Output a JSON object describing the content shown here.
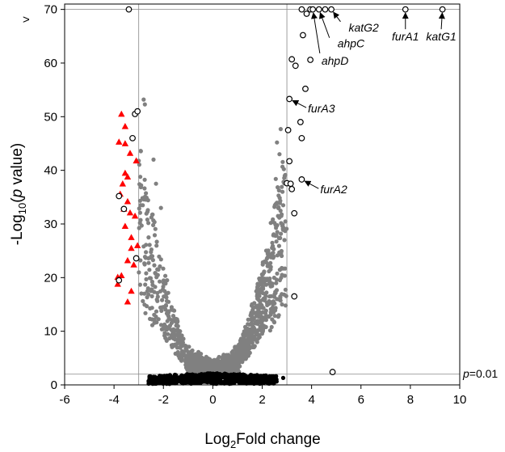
{
  "chart_data": {
    "type": "scatter",
    "xlabel_main": "Log",
    "xlabel_sub": "2",
    "xlabel_tail": "Fold change",
    "ylabel_pre": "-Log",
    "ylabel_sub": "10",
    "ylabel_open": "(",
    "ylabel_italic": "p",
    "ylabel_tail": " value)",
    "xlim": [
      -6,
      10
    ],
    "ylim": [
      0,
      71
    ],
    "x_ticks": [
      "-6",
      "-4",
      "-2",
      "0",
      "2",
      "4",
      "6",
      "8",
      "10"
    ],
    "y_ticks": [
      "0",
      "10",
      "20",
      "30",
      "40",
      "50",
      "60",
      "70"
    ],
    "y_overflow_marker": ">",
    "thresholds": {
      "fold_change": [
        -3,
        3
      ],
      "neg_log_p": 2
    },
    "threshold_label_italic": "p",
    "threshold_label_rest": "=0.01",
    "cap_value": 70,
    "colors": {
      "gray": "#808080",
      "black": "#000000",
      "red": "#ff0000",
      "open": "#ffffff"
    },
    "open_circles": [
      [
        -3.4,
        70
      ],
      [
        3.6,
        70
      ],
      [
        3.8,
        69.2
      ],
      [
        3.95,
        70
      ],
      [
        4.05,
        70
      ],
      [
        4.3,
        70
      ],
      [
        4.55,
        70
      ],
      [
        4.8,
        70
      ],
      [
        7.8,
        70
      ],
      [
        9.3,
        70
      ],
      [
        3.65,
        65.2
      ],
      [
        3.2,
        60.7
      ],
      [
        3.35,
        59.5
      ],
      [
        3.95,
        60.6
      ],
      [
        3.75,
        55.2
      ],
      [
        3.1,
        53.3
      ],
      [
        -3.15,
        50.5
      ],
      [
        -3.05,
        51
      ],
      [
        3.55,
        49
      ],
      [
        -3.25,
        46
      ],
      [
        3.05,
        47.5
      ],
      [
        3.6,
        46
      ],
      [
        3.1,
        41.7
      ],
      [
        3.6,
        38.3
      ],
      [
        3.0,
        37.6
      ],
      [
        3.15,
        37.5
      ],
      [
        3.2,
        36.5
      ],
      [
        -3.8,
        35.2
      ],
      [
        -3.6,
        32.8
      ],
      [
        3.3,
        32
      ],
      [
        -3.1,
        23.6
      ],
      [
        -3.8,
        19.5
      ],
      [
        3.3,
        16.5
      ],
      [
        4.85,
        2.4
      ]
    ],
    "red_triangles": [
      [
        -3.7,
        50.5
      ],
      [
        -3.55,
        48.2
      ],
      [
        -3.8,
        45.3
      ],
      [
        -3.55,
        45
      ],
      [
        -3.35,
        43.2
      ],
      [
        -3.1,
        41.8
      ],
      [
        -3.55,
        39.5
      ],
      [
        -3.45,
        38.8
      ],
      [
        -3.65,
        37.5
      ],
      [
        -3.75,
        35.6
      ],
      [
        -3.45,
        34.2
      ],
      [
        -3.6,
        32.8
      ],
      [
        -3.35,
        32.1
      ],
      [
        -3.15,
        31.5
      ],
      [
        -3.55,
        29.6
      ],
      [
        -3.3,
        27.5
      ],
      [
        -3.05,
        26
      ],
      [
        -3.3,
        25.5
      ],
      [
        -3.45,
        23.2
      ],
      [
        -3.2,
        22.4
      ],
      [
        -3.7,
        20.4
      ],
      [
        -3.85,
        18.8
      ],
      [
        -3.3,
        17.5
      ],
      [
        -3.85,
        20.1
      ],
      [
        -3.45,
        15.5
      ]
    ],
    "annotations": [
      {
        "label": "katG1",
        "point": [
          9.3,
          70
        ],
        "label_pos": [
          9.25,
          64.5
        ]
      },
      {
        "label": "furA1",
        "point": [
          7.8,
          70
        ],
        "label_pos": [
          7.8,
          64.5
        ]
      },
      {
        "label": "katG2",
        "point": [
          4.8,
          70
        ],
        "label_pos": [
          5.5,
          66.2
        ]
      },
      {
        "label": "ahpC",
        "point": [
          4.3,
          70
        ],
        "label_pos": [
          5.05,
          63.2
        ]
      },
      {
        "label": "ahpD",
        "point": [
          4.05,
          70
        ],
        "label_pos": [
          4.4,
          60
        ]
      },
      {
        "label": "furA3",
        "point": [
          3.1,
          53.3
        ],
        "label_pos": [
          3.85,
          51.1
        ]
      },
      {
        "label": "furA2",
        "point": [
          3.6,
          38.3
        ],
        "label_pos": [
          4.35,
          36
        ]
      }
    ]
  }
}
